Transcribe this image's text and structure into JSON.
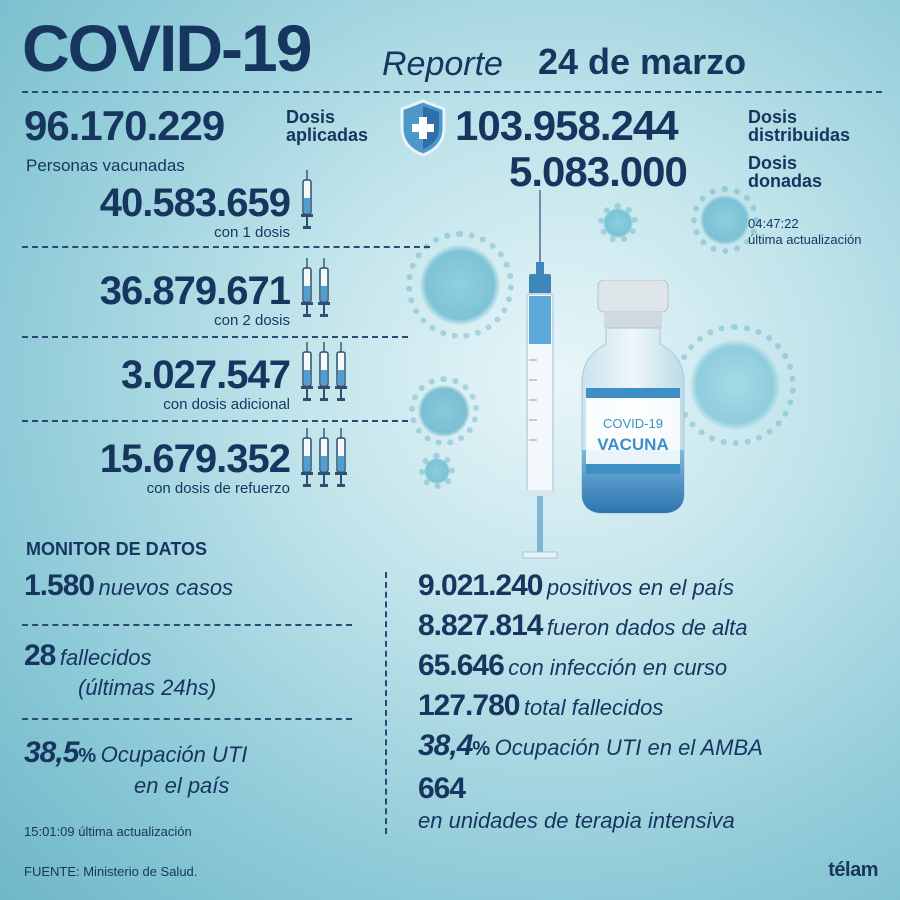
{
  "header": {
    "title": "COVID-19",
    "report_label": "Reporte",
    "report_date": "24 de marzo"
  },
  "dosis": {
    "aplicadas": {
      "value": "96.170.229",
      "label_1": "Dosis",
      "label_2": "aplicadas"
    },
    "distribuidas": {
      "value": "103.958.244",
      "label_1": "Dosis",
      "label_2": "distribuidas"
    },
    "donadas": {
      "value": "5.083.000",
      "label_1": "Dosis",
      "label_2": "donadas"
    },
    "update_time": "04:47:22",
    "update_label": "última actualización"
  },
  "vacunados": {
    "heading": "Personas vacunadas",
    "rows": [
      {
        "value": "40.583.659",
        "label": "con 1 dosis",
        "syringes": 1
      },
      {
        "value": "36.879.671",
        "label": "con 2 dosis",
        "syringes": 2
      },
      {
        "value": "3.027.547",
        "label": "con dosis adicional",
        "syringes": 3
      },
      {
        "value": "15.679.352",
        "label": "con dosis de refuerzo",
        "syringes": 3
      }
    ]
  },
  "vial": {
    "line_1": "COVID-19",
    "line_2": "VACUNA"
  },
  "monitor": {
    "heading": "MONITOR DE DATOS",
    "nuevos_value": "1.580",
    "nuevos_label": "nuevos casos",
    "fallecidos_value": "28",
    "fallecidos_label": "fallecidos",
    "fallecidos_sub": "(últimas 24hs)",
    "uti_value": "38,5",
    "uti_pct": "%",
    "uti_label_1": "Ocupación UTI",
    "uti_label_2": "en el país",
    "update_time": "15:01:09",
    "update_label": "última actualización"
  },
  "totals": [
    {
      "value": "9.021.240",
      "label": "positivos en el país"
    },
    {
      "value": "8.827.814",
      "label": "fueron dados de alta"
    },
    {
      "value": "65.646",
      "label": "con infección en curso"
    },
    {
      "value": "127.780",
      "label": "total fallecidos"
    }
  ],
  "amba": {
    "value": "38,4",
    "pct": "%",
    "label": "Ocupación UTI en el AMBA"
  },
  "terapia": {
    "value": "664",
    "label": "en unidades de terapia intensiva"
  },
  "footer": {
    "source": "FUENTE: Ministerio de Salud.",
    "brand": "télam"
  },
  "colors": {
    "navy": "#16355f",
    "vial_blue": "#3d8fc6",
    "syringe_blue": "#5aa9d8"
  },
  "icons": [
    "shield-plus-icon",
    "syringe-icon",
    "vaccine-vial-icon",
    "virus-icon"
  ]
}
